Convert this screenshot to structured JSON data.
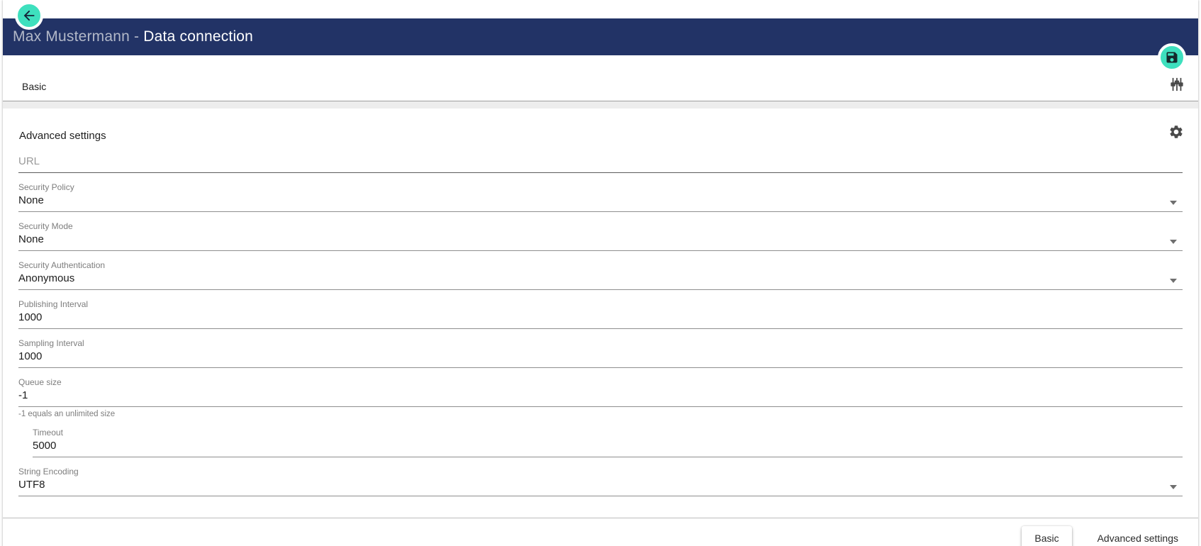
{
  "app": {
    "accent_color": "#3EE0BE",
    "header_color": "#223366"
  },
  "header": {
    "title_prefix": "Max Mustermann -",
    "title_main": "Data connection"
  },
  "basic_section": {
    "title": "Basic"
  },
  "advanced_section": {
    "title": "Advanced settings",
    "fields": [
      {
        "name": "url",
        "label": "",
        "placeholder": "URL",
        "value": "",
        "type": "text"
      },
      {
        "name": "security-policy",
        "label": "Security Policy",
        "value": "None",
        "type": "select"
      },
      {
        "name": "security-mode",
        "label": "Security Mode",
        "value": "None",
        "type": "select"
      },
      {
        "name": "security-authentication",
        "label": "Security Authentication",
        "value": "Anonymous",
        "type": "select"
      },
      {
        "name": "publishing-interval",
        "label": "Publishing Interval",
        "value": "1000",
        "type": "text"
      },
      {
        "name": "sampling-interval",
        "label": "Sampling Interval",
        "value": "1000",
        "type": "text"
      },
      {
        "name": "queue-size",
        "label": "Queue size",
        "value": "-1",
        "type": "text",
        "hint": "-1 equals an unlimited size"
      },
      {
        "name": "timeout",
        "label": "Timeout",
        "value": "5000",
        "type": "text",
        "indent": true
      },
      {
        "name": "string-encoding",
        "label": "String Encoding",
        "value": "UTF8",
        "type": "select"
      }
    ]
  },
  "footer": {
    "basic_button": "Basic",
    "advanced_button": "Advanced settings"
  }
}
